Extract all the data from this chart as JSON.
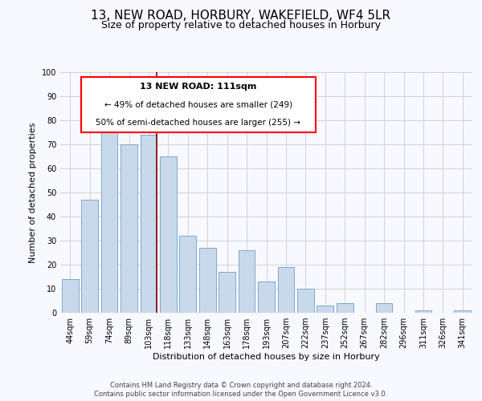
{
  "title": "13, NEW ROAD, HORBURY, WAKEFIELD, WF4 5LR",
  "subtitle": "Size of property relative to detached houses in Horbury",
  "xlabel": "Distribution of detached houses by size in Horbury",
  "ylabel": "Number of detached properties",
  "categories": [
    "44sqm",
    "59sqm",
    "74sqm",
    "89sqm",
    "103sqm",
    "118sqm",
    "133sqm",
    "148sqm",
    "163sqm",
    "178sqm",
    "193sqm",
    "207sqm",
    "222sqm",
    "237sqm",
    "252sqm",
    "267sqm",
    "282sqm",
    "296sqm",
    "311sqm",
    "326sqm",
    "341sqm"
  ],
  "values": [
    14,
    47,
    81,
    70,
    74,
    65,
    32,
    27,
    17,
    26,
    13,
    19,
    10,
    3,
    4,
    0,
    4,
    0,
    1,
    0,
    1
  ],
  "bar_color": "#c9d9ec",
  "bar_edge_color": "#7aaad0",
  "ylim": [
    0,
    100
  ],
  "yticks": [
    0,
    10,
    20,
    30,
    40,
    50,
    60,
    70,
    80,
    90,
    100
  ],
  "marker_label": "13 NEW ROAD: 111sqm",
  "annotation_line1": "← 49% of detached houses are smaller (249)",
  "annotation_line2": "50% of semi-detached houses are larger (255) →",
  "footer_line1": "Contains HM Land Registry data © Crown copyright and database right 2024.",
  "footer_line2": "Contains public sector information licensed under the Open Government Licence v3.0.",
  "background_color": "#f8f8ff",
  "grid_color": "#cccccc",
  "title_fontsize": 11,
  "subtitle_fontsize": 9,
  "axis_label_fontsize": 8,
  "tick_fontsize": 7,
  "footer_fontsize": 6
}
